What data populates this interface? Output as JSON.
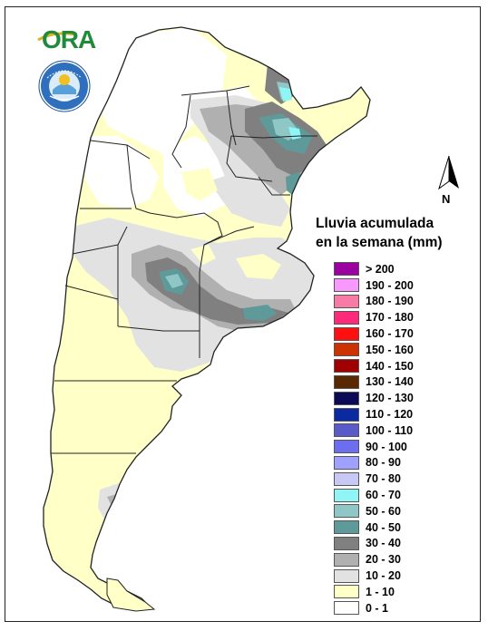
{
  "logo": {
    "wordmark": "ORA",
    "seal_text": "SERVICIO METEOROLÓGICO NACIONAL · ARGENTINA"
  },
  "north_arrow": {
    "label": "N"
  },
  "legend": {
    "title_line1": "Lluvia acumulada",
    "title_line2": "en la semana (mm)",
    "items": [
      {
        "label": "> 200",
        "color": "#9b00a0"
      },
      {
        "label": "190 - 200",
        "color": "#f799ff"
      },
      {
        "label": "180 - 190",
        "color": "#f77ba5"
      },
      {
        "label": "170 - 180",
        "color": "#ff2a7a"
      },
      {
        "label": "160 - 170",
        "color": "#ff1010"
      },
      {
        "label": "150 - 160",
        "color": "#cc3300"
      },
      {
        "label": "140 - 150",
        "color": "#a00000"
      },
      {
        "label": "130 - 140",
        "color": "#5a2800"
      },
      {
        "label": "120 - 130",
        "color": "#0a0a55"
      },
      {
        "label": "110 - 120",
        "color": "#0a2aa0"
      },
      {
        "label": "100 - 110",
        "color": "#5a5ac8"
      },
      {
        "label": "90 - 100",
        "color": "#6d6df0"
      },
      {
        "label": "80 - 90",
        "color": "#a0a0ff"
      },
      {
        "label": "70 - 80",
        "color": "#c8c8f5"
      },
      {
        "label": "60 - 70",
        "color": "#8ff5f5"
      },
      {
        "label": "50 - 60",
        "color": "#8fc6c6"
      },
      {
        "label": "40 - 50",
        "color": "#5f9a9a"
      },
      {
        "label": "30 - 40",
        "color": "#808080"
      },
      {
        "label": "20 - 30",
        "color": "#b0b0b0"
      },
      {
        "label": "10 - 20",
        "color": "#e2e2e2"
      },
      {
        "label": "1 - 10",
        "color": "#ffffc8"
      },
      {
        "label": "0 - 1",
        "color": "#ffffff"
      }
    ]
  },
  "map": {
    "colors": {
      "land_base": "#ffffc8",
      "none": "#ffffff",
      "light": "#e2e2e2",
      "mid": "#b0b0b0",
      "dark": "#808080",
      "teal": "#5f9a9a",
      "teal_light": "#8fc6c6",
      "cyan": "#8ff5f5",
      "border": "#222222"
    }
  }
}
